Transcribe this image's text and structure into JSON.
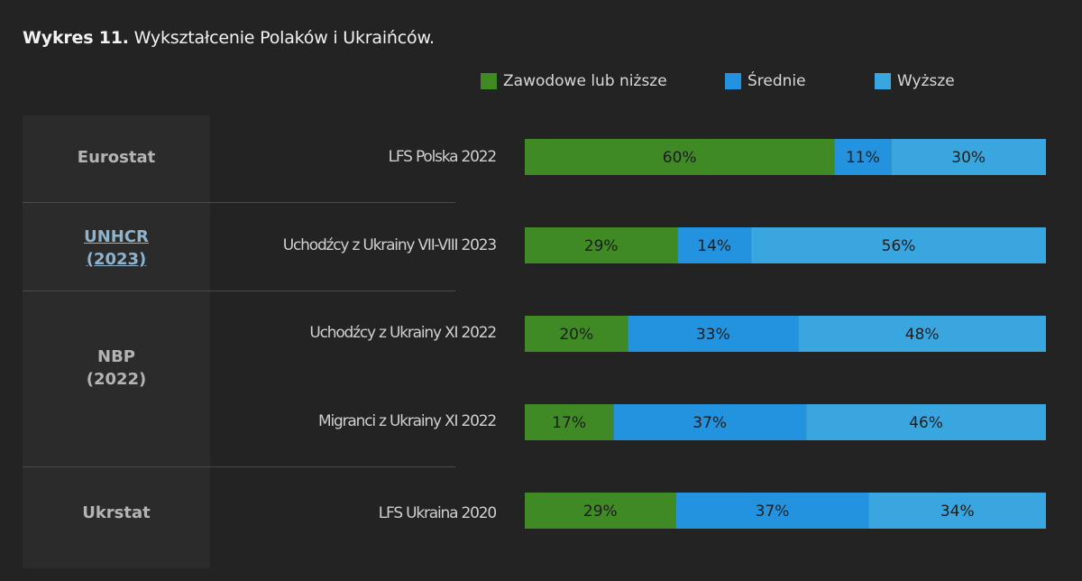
{
  "title": {
    "bold": "Wykres 11.",
    "rest": " Wykształcenie Polaków i Ukraińców."
  },
  "colors": {
    "vocational": "#3f8a25",
    "secondary": "#2493df",
    "higher": "#3aa6e0",
    "source_bg": "#2b2b2b"
  },
  "chart_data": {
    "type": "bar",
    "orientation": "horizontal",
    "stacked": true,
    "title": "Wykształcenie Polaków i Ukraińców.",
    "unit": "%",
    "legend_position": "top-right",
    "series_names": [
      "Zawodowe lub niższe",
      "Średnie",
      "Wyższe"
    ],
    "groups": [
      {
        "source": [
          "Eurostat"
        ],
        "link": false
      },
      {
        "source": [
          "UNHCR",
          "(2023)"
        ],
        "link": true
      },
      {
        "source": [
          "NBP",
          "(2022)"
        ],
        "link": false
      },
      {
        "source": [
          "Ukrstat"
        ],
        "link": false
      }
    ],
    "rows": [
      {
        "label": "LFS Polska 2022",
        "group": 0,
        "values": [
          60,
          11,
          30
        ],
        "display": [
          "60%",
          "11%",
          "30%"
        ]
      },
      {
        "label": "Uchodźcy z Ukrainy VII-VIII 2023",
        "group": 1,
        "values": [
          29,
          14,
          56
        ],
        "display": [
          "29%",
          "14%",
          "56%"
        ]
      },
      {
        "label": "Uchodźcy z Ukrainy XI 2022",
        "group": 2,
        "values": [
          20,
          33,
          48
        ],
        "display": [
          "20%",
          "33%",
          "48%"
        ]
      },
      {
        "label": "Migranci z Ukrainy XI 2022",
        "group": 2,
        "values": [
          17,
          37,
          46
        ],
        "display": [
          "17%",
          "37%",
          "46%"
        ]
      },
      {
        "label": "LFS Ukraina 2020",
        "group": 3,
        "values": [
          29,
          37,
          34
        ],
        "display": [
          "29%",
          "37%",
          "34%"
        ]
      }
    ]
  }
}
